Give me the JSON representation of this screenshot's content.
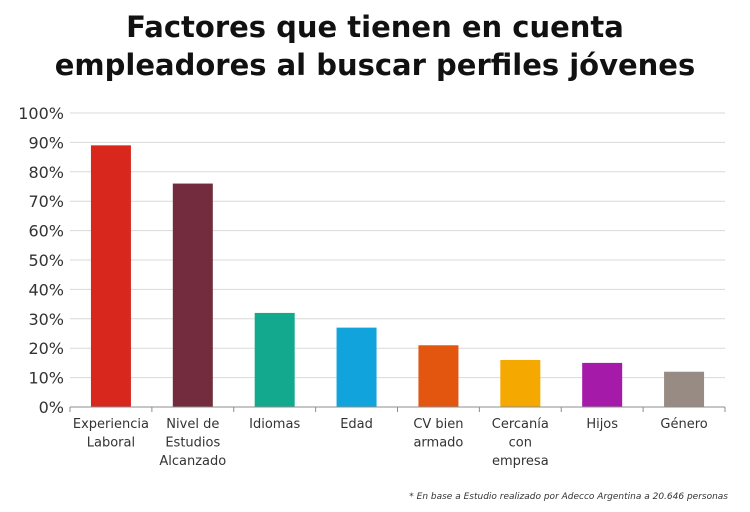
{
  "title_line1": "Factores que tienen en cuenta",
  "title_line2": "empleadores al buscar perfiles jóvenes",
  "footnote": "* En base a Estudio realizado por Adecco Argentina a 20.646 personas",
  "chart_data": {
    "type": "bar",
    "title": "Factores que tienen en cuenta empleadores al buscar perfiles jóvenes",
    "categories": [
      [
        "Experiencia",
        "Laboral"
      ],
      [
        "Nivel de",
        "Estudios",
        "Alcanzado"
      ],
      [
        "Idiomas"
      ],
      [
        "Edad"
      ],
      [
        "CV bien",
        "armado"
      ],
      [
        "Cercanía",
        "con",
        "empresa"
      ],
      [
        "Hijos"
      ],
      [
        "Género"
      ]
    ],
    "values": [
      89,
      76,
      32,
      27,
      21,
      16,
      15,
      12
    ],
    "colors": [
      "#d8281e",
      "#722c3e",
      "#13a98e",
      "#11a4dc",
      "#e2560f",
      "#f5a800",
      "#a51aa8",
      "#978b83"
    ],
    "ylim": [
      0,
      100
    ],
    "yticks": [
      0,
      10,
      20,
      30,
      40,
      50,
      60,
      70,
      80,
      90,
      100
    ],
    "ytick_suffix": "%",
    "grid": true,
    "legend": "none"
  }
}
